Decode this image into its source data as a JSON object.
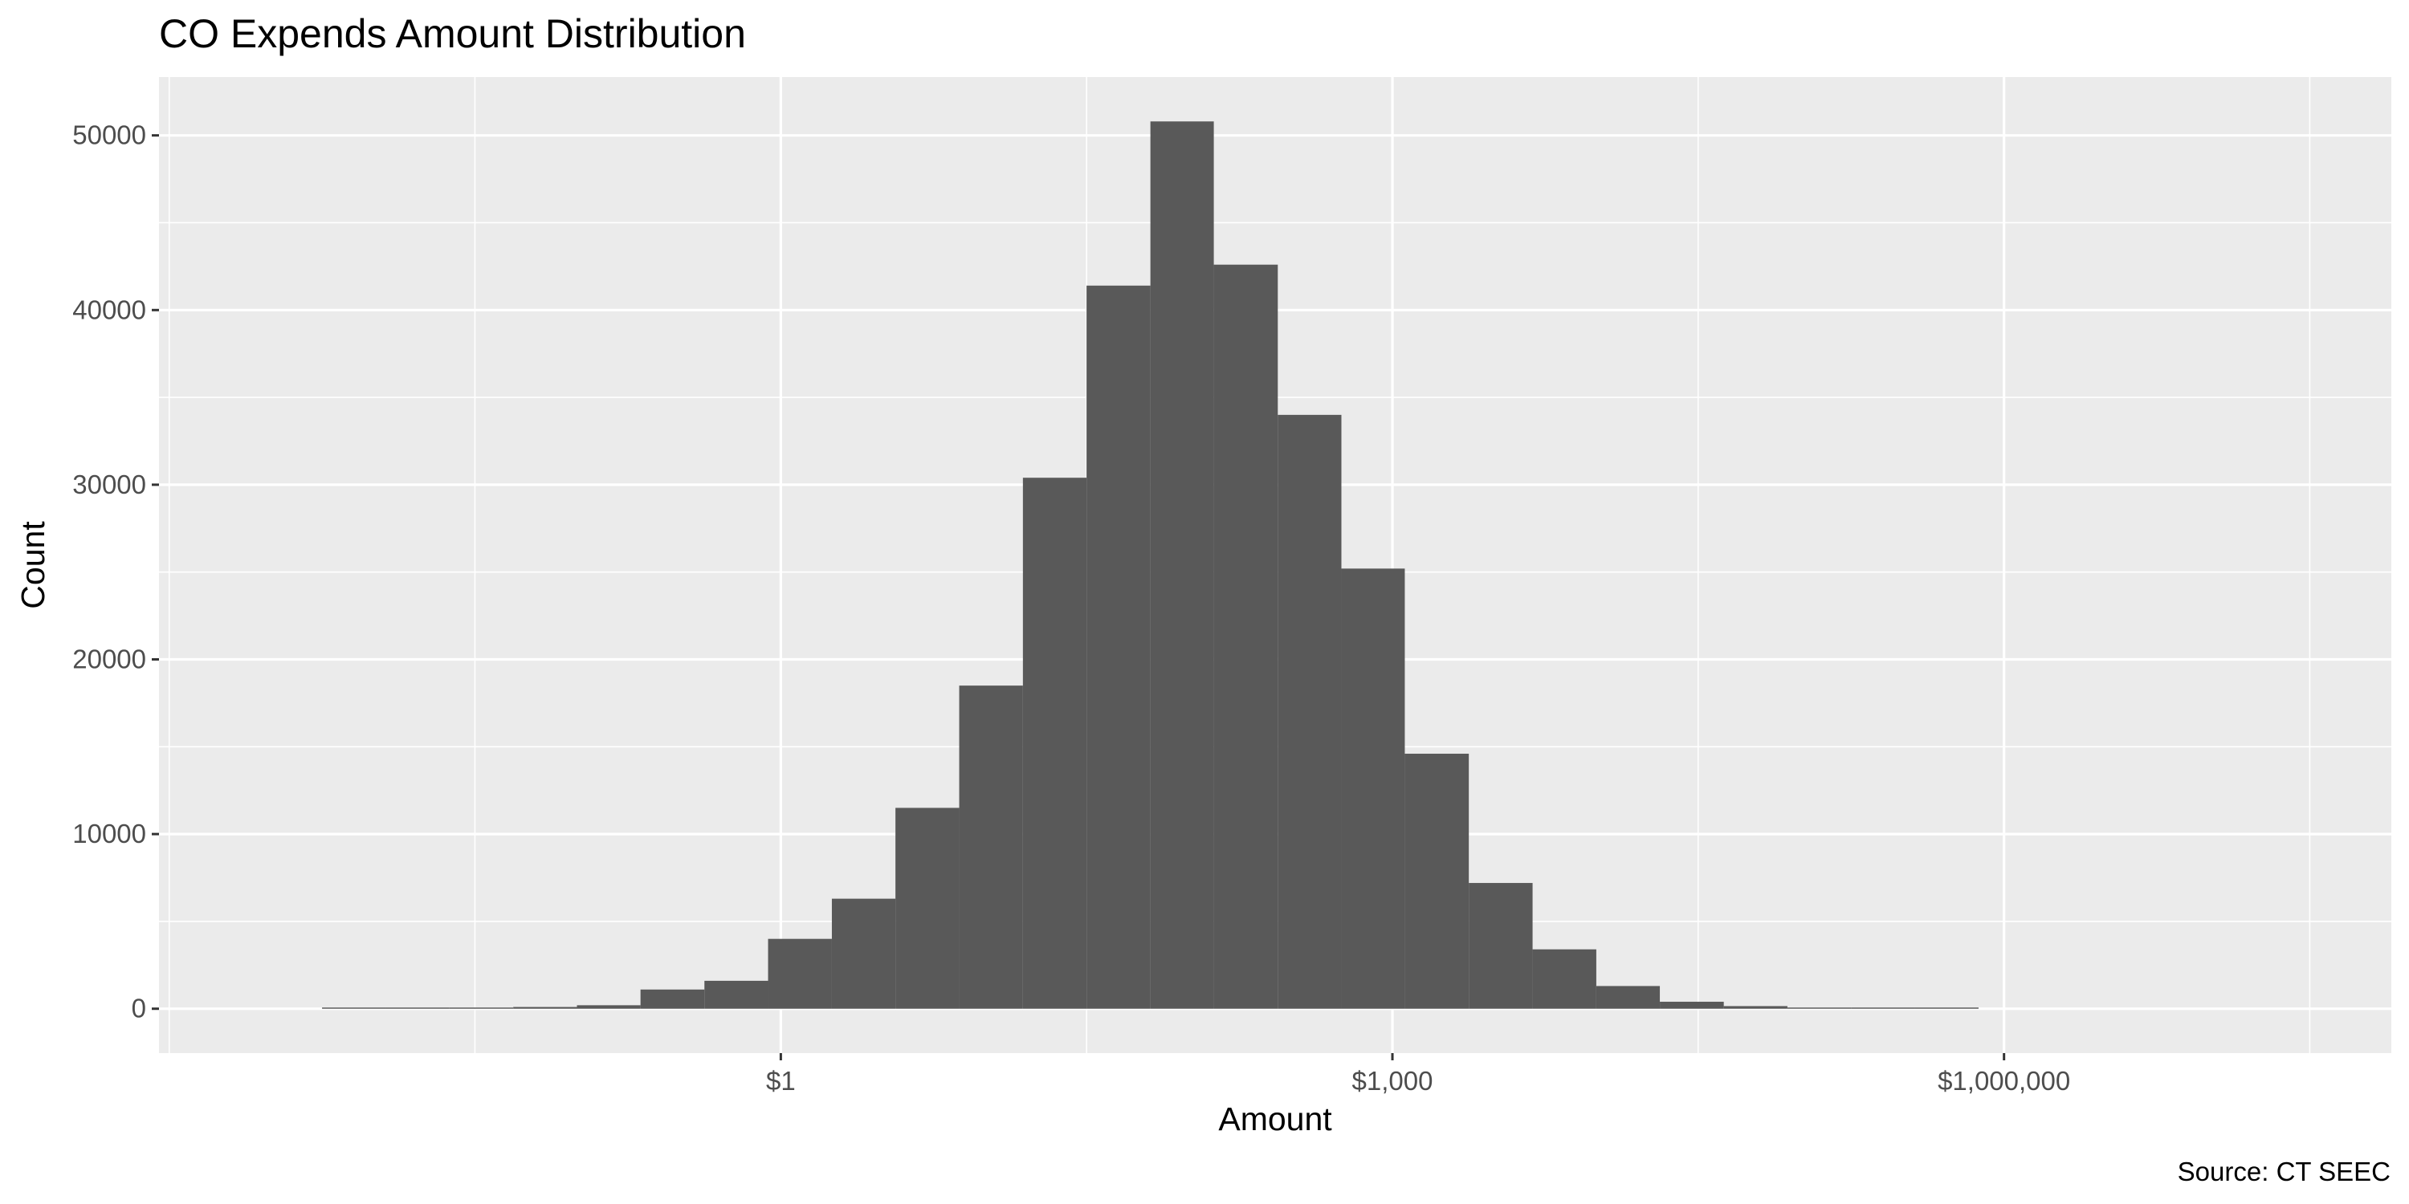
{
  "chart_data": {
    "type": "bar",
    "title": "CO Expends Amount Distribution",
    "xlabel": "Amount",
    "ylabel": "Count",
    "caption": "Source: CT SEEC",
    "x_scale": "log10",
    "xlim": [
      0.000891,
      79400000
    ],
    "ylim": [
      -2540,
      53340
    ],
    "grid": true,
    "legend": "none",
    "colors": {
      "panel": "#ebebeb",
      "grid": "#ffffff",
      "bar": "#595959",
      "tick_text": "#4d4d4d"
    },
    "x_ticks": [
      {
        "value": 1,
        "label": "$1"
      },
      {
        "value": 1000,
        "label": "$1,000"
      },
      {
        "value": 1000000,
        "label": "$1,000,000"
      }
    ],
    "x_minor_gridlines": [
      0.001,
      0.0316,
      31.6,
      31600,
      31600000
    ],
    "y_ticks": [
      {
        "value": 0,
        "label": "0"
      },
      {
        "value": 10000,
        "label": "10000"
      },
      {
        "value": 20000,
        "label": "20000"
      },
      {
        "value": 30000,
        "label": "30000"
      },
      {
        "value": 40000,
        "label": "40000"
      },
      {
        "value": 50000,
        "label": "50000"
      }
    ],
    "y_minor_gridlines": [
      5000,
      15000,
      25000,
      35000,
      45000
    ],
    "bins": [
      {
        "x0": 0.00562,
        "x1": 0.0115,
        "count": 10
      },
      {
        "x0": 0.0115,
        "x1": 0.0237,
        "count": 20
      },
      {
        "x0": 0.0237,
        "x1": 0.0487,
        "count": 40
      },
      {
        "x0": 0.0487,
        "x1": 0.1,
        "count": 100
      },
      {
        "x0": 0.1,
        "x1": 0.205,
        "count": 200
      },
      {
        "x0": 0.205,
        "x1": 0.422,
        "count": 1100
      },
      {
        "x0": 0.422,
        "x1": 0.866,
        "count": 1600
      },
      {
        "x0": 0.866,
        "x1": 1.78,
        "count": 4000
      },
      {
        "x0": 1.78,
        "x1": 3.65,
        "count": 6300
      },
      {
        "x0": 3.65,
        "x1": 7.5,
        "count": 11500
      },
      {
        "x0": 7.5,
        "x1": 15.4,
        "count": 18500
      },
      {
        "x0": 15.4,
        "x1": 31.6,
        "count": 30400
      },
      {
        "x0": 31.6,
        "x1": 65,
        "count": 41400
      },
      {
        "x0": 65,
        "x1": 133,
        "count": 50800
      },
      {
        "x0": 133,
        "x1": 274,
        "count": 42600
      },
      {
        "x0": 274,
        "x1": 562,
        "count": 34000
      },
      {
        "x0": 562,
        "x1": 1150,
        "count": 25200
      },
      {
        "x0": 1150,
        "x1": 2370,
        "count": 14600
      },
      {
        "x0": 2370,
        "x1": 4870,
        "count": 7200
      },
      {
        "x0": 4870,
        "x1": 10000,
        "count": 3400
      },
      {
        "x0": 10000,
        "x1": 20500,
        "count": 1300
      },
      {
        "x0": 20500,
        "x1": 42200,
        "count": 400
      },
      {
        "x0": 42200,
        "x1": 86600,
        "count": 150
      },
      {
        "x0": 86600,
        "x1": 178000,
        "count": 60
      },
      {
        "x0": 178000,
        "x1": 365000,
        "count": 30
      },
      {
        "x0": 365000,
        "x1": 750000,
        "count": 10
      }
    ]
  }
}
